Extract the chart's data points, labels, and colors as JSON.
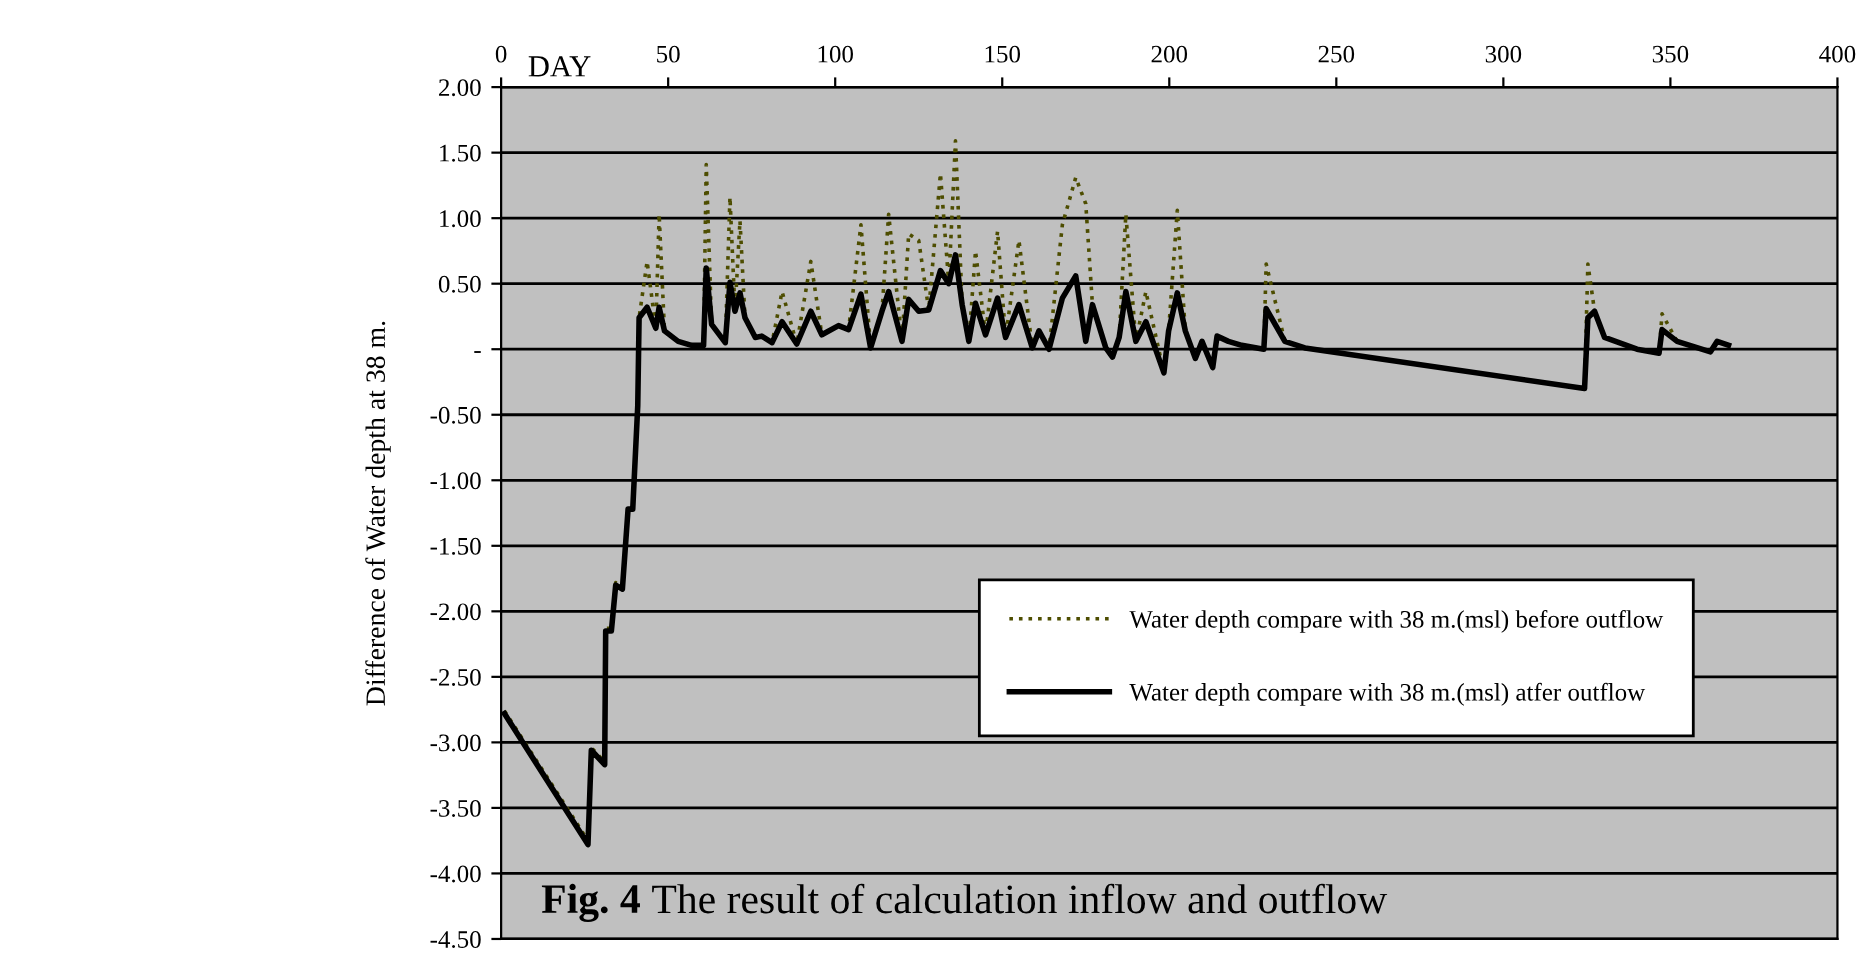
{
  "chart_data": {
    "type": "line",
    "xlabel": "DAY",
    "ylabel": "Difference of Water depth at 38 m.",
    "x": [
      1,
      26,
      27,
      31,
      31.3,
      33,
      34.3,
      36.3,
      38,
      39.4,
      40.9,
      41.3,
      43.7,
      46.3,
      47.3,
      48.9,
      53,
      57,
      60.6,
      61.4,
      63,
      67.1,
      68.5,
      70,
      71.5,
      73,
      76.1,
      78,
      81.1,
      84.1,
      88.5,
      92.7,
      96,
      101,
      104,
      107.7,
      110.6,
      114,
      116,
      120,
      122,
      125,
      128,
      131.5,
      134,
      136,
      138,
      140,
      142,
      145,
      148.6,
      151,
      155,
      159,
      161,
      164,
      168,
      172,
      175,
      177,
      181,
      183,
      185,
      187,
      190,
      193,
      198.4,
      199.8,
      202.4,
      204.8,
      207.8,
      209.8,
      213,
      214.3,
      217.7,
      221.7,
      228.3,
      229,
      234.6,
      240.6,
      324.3,
      325.3,
      327.3,
      330.3,
      340,
      346.6,
      347.5,
      352,
      362,
      364,
      367.4
    ],
    "series": [
      {
        "name": "Water depth compare with 38 m.(msl) before outflow",
        "color": "#4d4d00",
        "line_style": "dotted",
        "values": [
          -2.76,
          -3.75,
          -3.04,
          -3.15,
          -2.13,
          -2.13,
          -1.78,
          -1.81,
          -1.2,
          -1.2,
          -0.4,
          0.24,
          0.67,
          0.16,
          1.03,
          0.14,
          0.06,
          0.03,
          0.03,
          1.41,
          0.19,
          0.05,
          1.16,
          0.29,
          0.98,
          0.24,
          0.09,
          0.1,
          0.05,
          0.44,
          0.04,
          0.67,
          0.11,
          0.18,
          0.15,
          0.95,
          0.01,
          0.29,
          1.03,
          0.06,
          0.88,
          0.83,
          0.3,
          1.34,
          0.5,
          1.59,
          0.34,
          0.06,
          0.75,
          0.11,
          0.9,
          0.09,
          0.83,
          0.01,
          0.14,
          0.0,
          0.95,
          1.31,
          1.11,
          0.34,
          0.01,
          -0.06,
          0.09,
          1.03,
          0.06,
          0.44,
          -0.18,
          0.14,
          1.06,
          0.14,
          -0.07,
          0.06,
          -0.14,
          0.1,
          0.06,
          0.03,
          0.0,
          0.65,
          0.06,
          0.01,
          -0.3,
          0.65,
          0.29,
          0.09,
          0.0,
          -0.03,
          0.27,
          0.06,
          -0.02,
          0.06,
          0.03
        ]
      },
      {
        "name": "Water depth compare with 38 m.(msl) atfer outflow",
        "color": "#000000",
        "line_style": "solid",
        "values": [
          -2.78,
          -3.78,
          -3.06,
          -3.17,
          -2.15,
          -2.15,
          -1.8,
          -1.83,
          -1.22,
          -1.22,
          -0.43,
          0.24,
          0.32,
          0.16,
          0.32,
          0.14,
          0.06,
          0.03,
          0.03,
          0.62,
          0.19,
          0.05,
          0.51,
          0.29,
          0.43,
          0.24,
          0.09,
          0.1,
          0.05,
          0.21,
          0.04,
          0.29,
          0.11,
          0.18,
          0.15,
          0.42,
          0.01,
          0.29,
          0.44,
          0.06,
          0.38,
          0.29,
          0.3,
          0.6,
          0.5,
          0.72,
          0.34,
          0.06,
          0.35,
          0.11,
          0.39,
          0.09,
          0.34,
          0.01,
          0.14,
          0.0,
          0.39,
          0.56,
          0.06,
          0.34,
          0.01,
          -0.06,
          0.09,
          0.44,
          0.06,
          0.21,
          -0.18,
          0.14,
          0.43,
          0.14,
          -0.07,
          0.06,
          -0.14,
          0.1,
          0.06,
          0.03,
          0.0,
          0.31,
          0.06,
          0.01,
          -0.3,
          0.24,
          0.29,
          0.09,
          0.0,
          -0.03,
          0.15,
          0.06,
          -0.02,
          0.06,
          0.03
        ]
      }
    ],
    "xlim": [
      0,
      400
    ],
    "xticks": [
      0,
      50,
      100,
      150,
      200,
      250,
      300,
      350,
      400
    ],
    "ylim": [
      -4.5,
      2.0
    ],
    "yticks": [
      {
        "value": 2.0,
        "label": "2.00"
      },
      {
        "value": 1.5,
        "label": "1.50"
      },
      {
        "value": 1.0,
        "label": "1.00"
      },
      {
        "value": 0.5,
        "label": "0.50"
      },
      {
        "value": 0,
        "label": "-"
      },
      {
        "value": -0.5,
        "label": "-0.50"
      },
      {
        "value": -1.0,
        "label": "-1.00"
      },
      {
        "value": -1.5,
        "label": "-1.50"
      },
      {
        "value": -2.0,
        "label": "-2.00"
      },
      {
        "value": -2.5,
        "label": "-2.50"
      },
      {
        "value": -3.0,
        "label": "-3.00"
      },
      {
        "value": -3.5,
        "label": "-3.50"
      },
      {
        "value": -4.0,
        "label": "-4.00"
      },
      {
        "value": -4.5,
        "label": "-4.50"
      }
    ],
    "grid": "y",
    "legend": "center",
    "marker": "none",
    "annotations": [
      "Fig. 4",
      "The result of calculation inflow and outflow"
    ]
  }
}
